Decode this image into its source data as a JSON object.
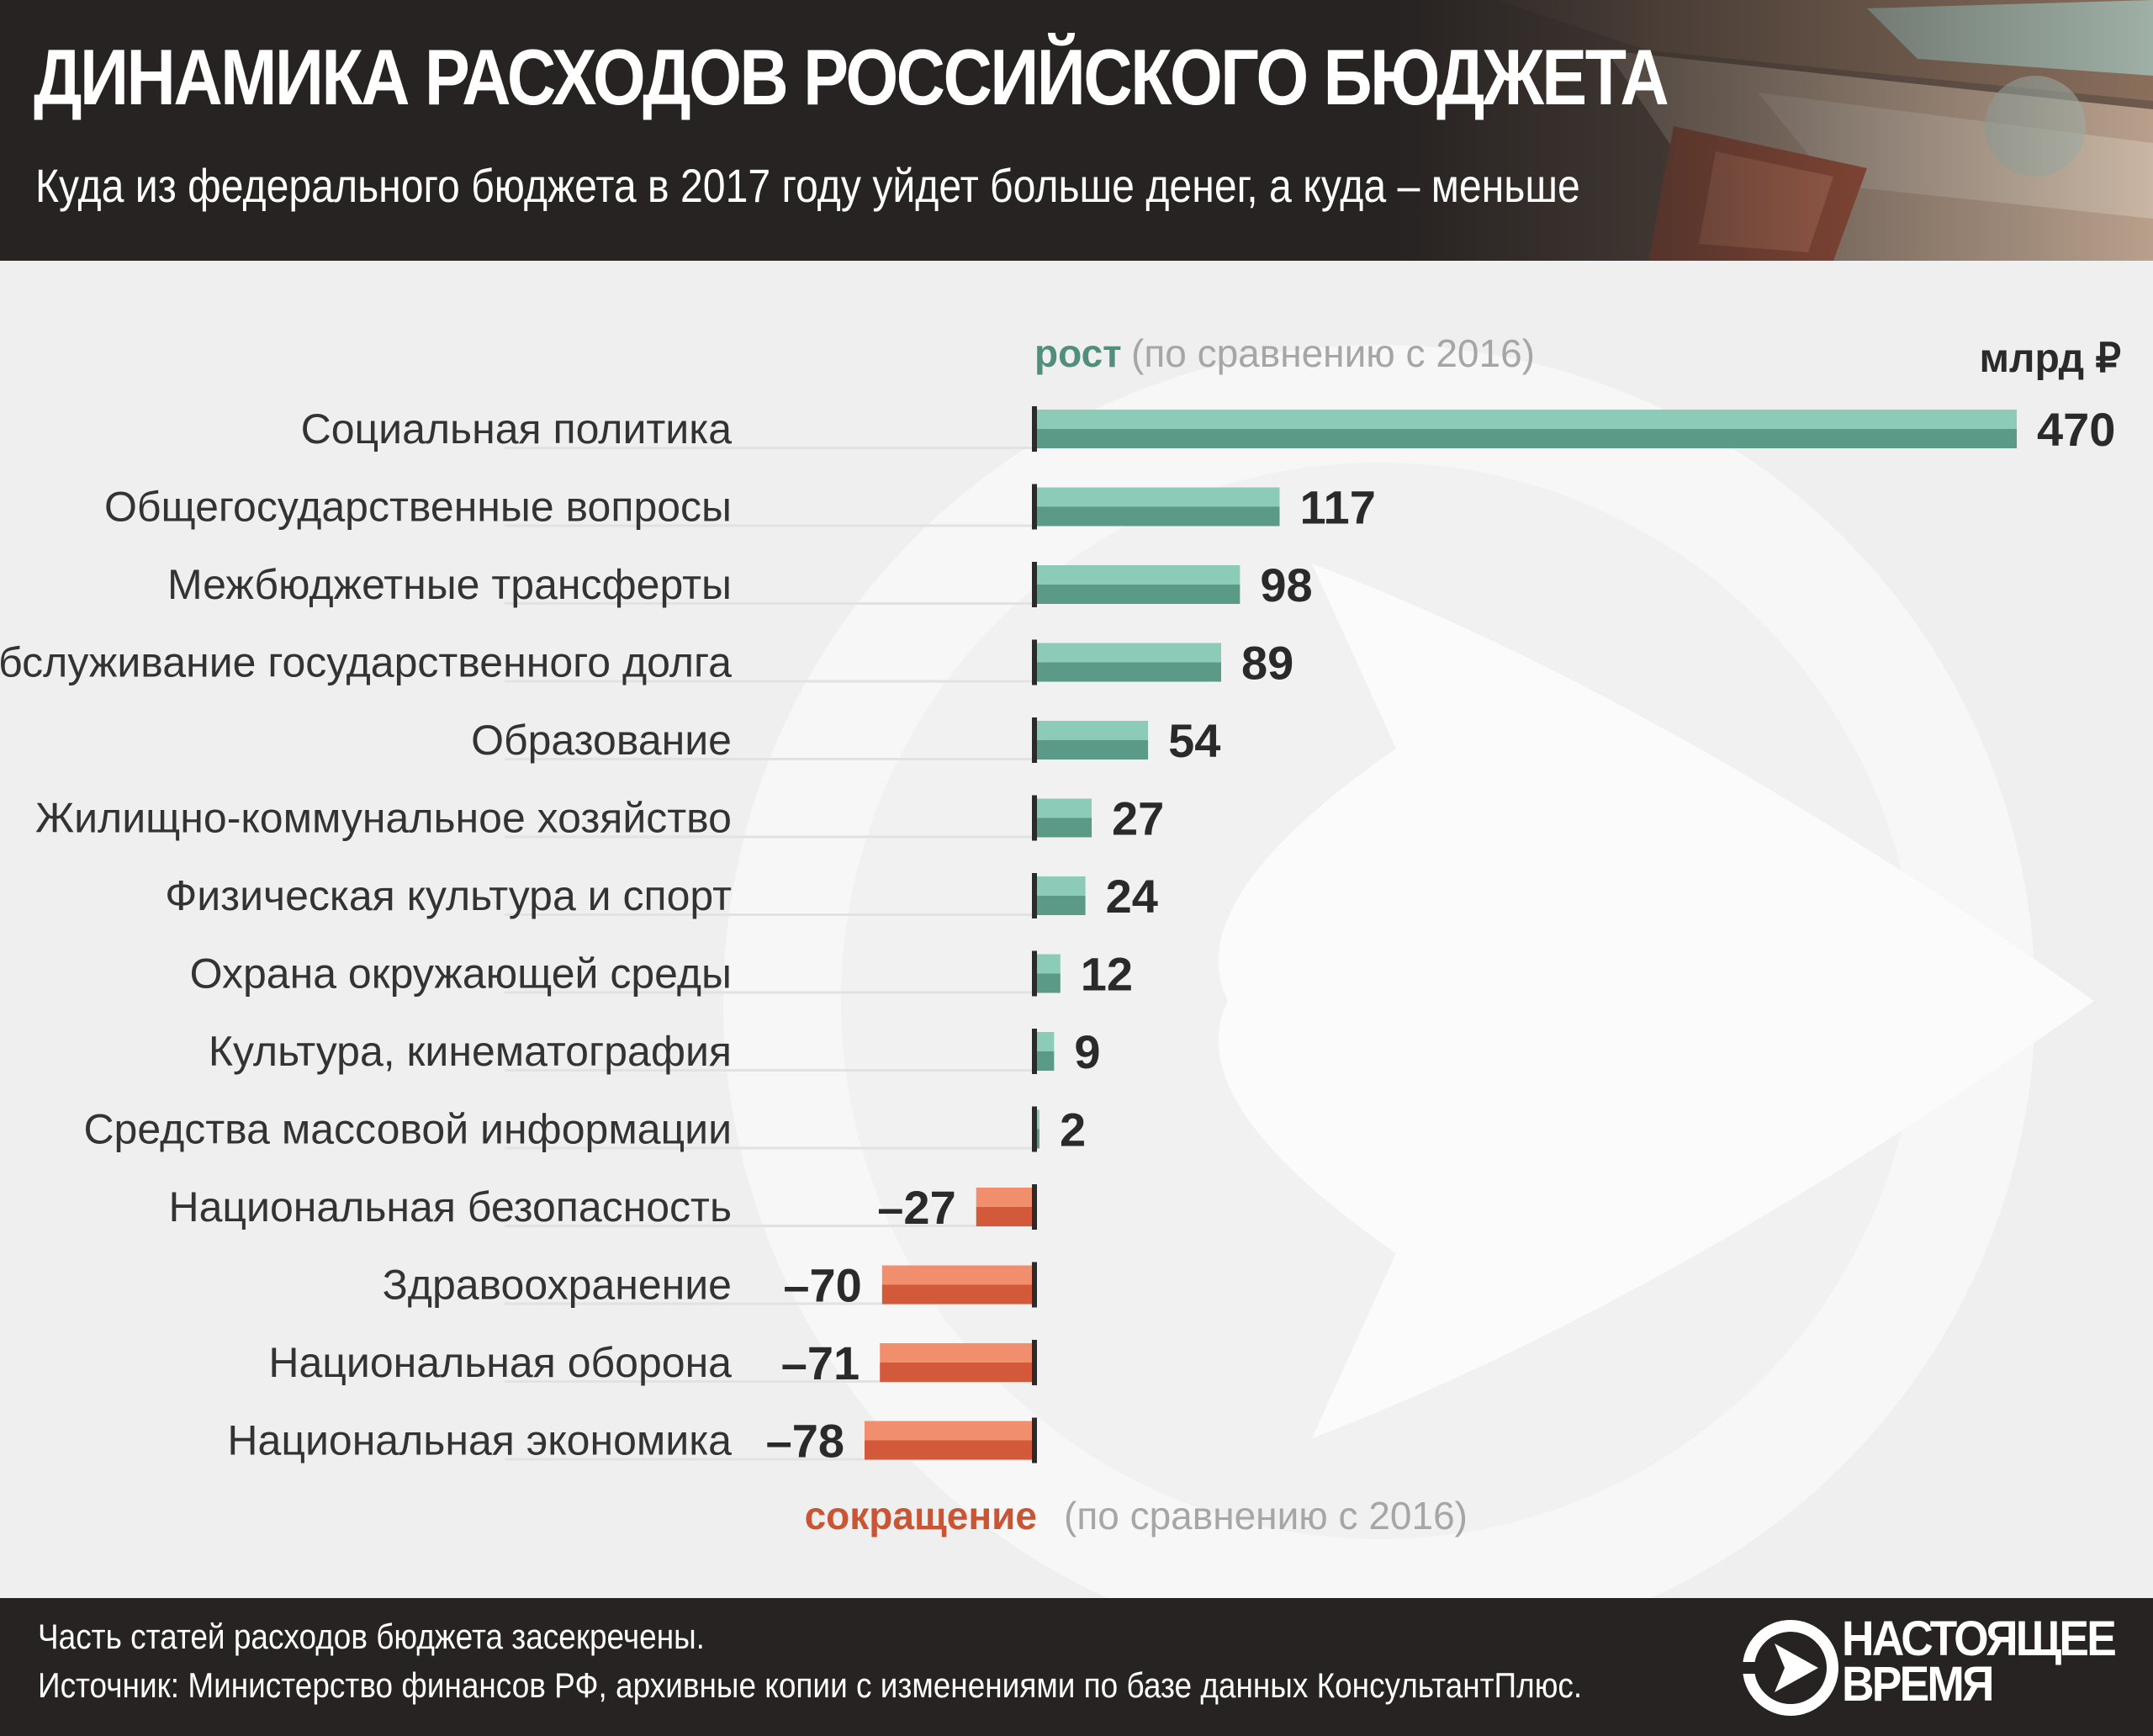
{
  "header": {
    "title": "ДИНАМИКА РАСХОДОВ РОССИЙСКОГО БЮДЖЕТА",
    "subtitle": "Куда из федерального бюджета в 2017 году уйдет больше денег, а куда – меньше"
  },
  "colors": {
    "growth_light": "#8ccbb7",
    "growth_dark": "#5a9a86",
    "decline_light": "#f08e6d",
    "decline_dark": "#d2593a",
    "growth_text": "#4f8f7c",
    "decline_text": "#c95535",
    "header_bg": "#272322"
  },
  "chart_data": {
    "type": "bar",
    "orientation": "horizontal",
    "unit_label": "млрд ₽",
    "growth_label": "рост",
    "growth_note": "(по сравнению с 2016)",
    "decline_label": "сокращение",
    "decline_note": "(по сравнению с 2016)",
    "categories": [
      "Социальная политика",
      "Общегосударственные вопросы",
      "Межбюджетные трансферты",
      "Обслуживание государственного долга",
      "Образование",
      "Жилищно-коммунальное хозяйство",
      "Физическая культура и спорт",
      "Охрана окружающей среды",
      "Культура, кинематография",
      "Средства массовой информации",
      "Национальная безопасность",
      "Здравоохранение",
      "Национальная оборона",
      "Национальная экономика"
    ],
    "values": [
      470,
      117,
      98,
      89,
      54,
      27,
      24,
      12,
      9,
      2,
      -27,
      -70,
      -71,
      -78
    ],
    "value_labels": [
      "470",
      "117",
      "98",
      "89",
      "54",
      "27",
      "24",
      "12",
      "9",
      "2",
      "–27",
      "–70",
      "–71",
      "–78"
    ],
    "xlim": [
      -78,
      470
    ]
  },
  "footer": {
    "footnote": "Часть статей расходов бюджета засекречены.",
    "source": "Источник: Министерство финансов РФ, архивные копии с изменениями по базе данных КонсультантПлюс.",
    "logo_line1": "НАСТОЯЩЕЕ",
    "logo_line2": "ВРЕМЯ"
  }
}
